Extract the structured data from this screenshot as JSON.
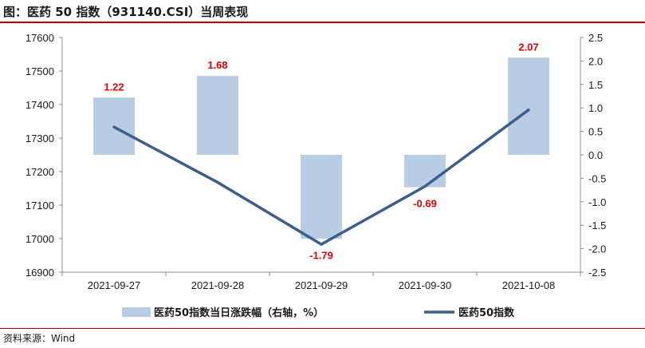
{
  "header": {
    "title": "图：医药 50 指数（931140.CSI）当周表现"
  },
  "footer": {
    "source": "资料来源：Wind"
  },
  "colors": {
    "bar": "#b8cce4",
    "line": "#3b5e8c",
    "data_label": "#e60000",
    "accent_rule": "#c00000"
  },
  "chart_data": {
    "type": "bar+line",
    "categories": [
      "2021-09-27",
      "2021-09-28",
      "2021-09-29",
      "2021-09-30",
      "2021-10-08"
    ],
    "series": [
      {
        "name": "医药50指数当日涨跌幅（右轴，%）",
        "type": "bar",
        "axis": "right",
        "values": [
          1.22,
          1.68,
          -1.79,
          -0.69,
          2.07
        ],
        "data_labels": [
          "1.22",
          "1.68",
          "-1.79",
          "-0.69",
          "2.07"
        ]
      },
      {
        "name": "医药50指数",
        "type": "line",
        "axis": "left",
        "values": [
          17333,
          17168,
          16983,
          17156,
          17384
        ]
      }
    ],
    "y_left": {
      "range": [
        16900,
        17600
      ],
      "ticks": [
        "17600",
        "17500",
        "17400",
        "17300",
        "17200",
        "17100",
        "17000",
        "16900"
      ]
    },
    "y_right": {
      "range": [
        -2.5,
        2.5
      ],
      "ticks": [
        "2.5",
        "2.0",
        "1.5",
        "1.0",
        "0.5",
        "0.0",
        "-0.5",
        "-1.0",
        "-1.5",
        "-2.0",
        "-2.5"
      ]
    },
    "grid": false,
    "legend_position": "bottom"
  }
}
